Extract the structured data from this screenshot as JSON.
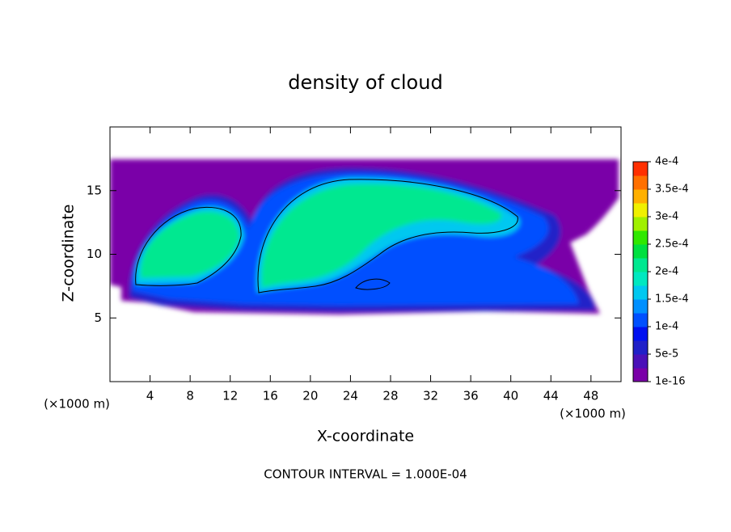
{
  "chart_data": {
    "type": "contour",
    "title": "density of cloud",
    "x_label": "X-coordinate",
    "y_label": "Z-coordinate",
    "x_unit": "(×1000 m)",
    "y_unit": "(×1000 m)",
    "annotation": "CONTOUR INTERVAL = 1.000E-04",
    "xlim": [
      0,
      51
    ],
    "xticks": [
      4,
      8,
      12,
      16,
      20,
      24,
      28,
      32,
      36,
      40,
      44,
      48
    ],
    "ylim": [
      0,
      20
    ],
    "yticks": [
      5,
      10,
      15
    ],
    "colorbar": {
      "lim": [
        0,
        0.0004
      ],
      "ticks": [
        {
          "value": 1e-16,
          "label": "1e-16"
        },
        {
          "value": 5e-05,
          "label": "5e-5"
        },
        {
          "value": 0.0001,
          "label": "1e-4"
        },
        {
          "value": 0.00015,
          "label": "1.5e-4"
        },
        {
          "value": 0.0002,
          "label": "2e-4"
        },
        {
          "value": 0.00025,
          "label": "2.5e-4"
        },
        {
          "value": 0.0003,
          "label": "3e-4"
        },
        {
          "value": 0.00035,
          "label": "3.5e-4"
        },
        {
          "value": 0.0004,
          "label": "4e-4"
        }
      ],
      "colors": [
        "#7a00a8",
        "#4a10b8",
        "#2020c8",
        "#0010f0",
        "#0050ff",
        "#0090ff",
        "#00c8f0",
        "#00e8c0",
        "#00e890",
        "#00e040",
        "#30e800",
        "#a0f000",
        "#f0f000",
        "#ffb000",
        "#ff7000",
        "#ff3000"
      ]
    }
  }
}
